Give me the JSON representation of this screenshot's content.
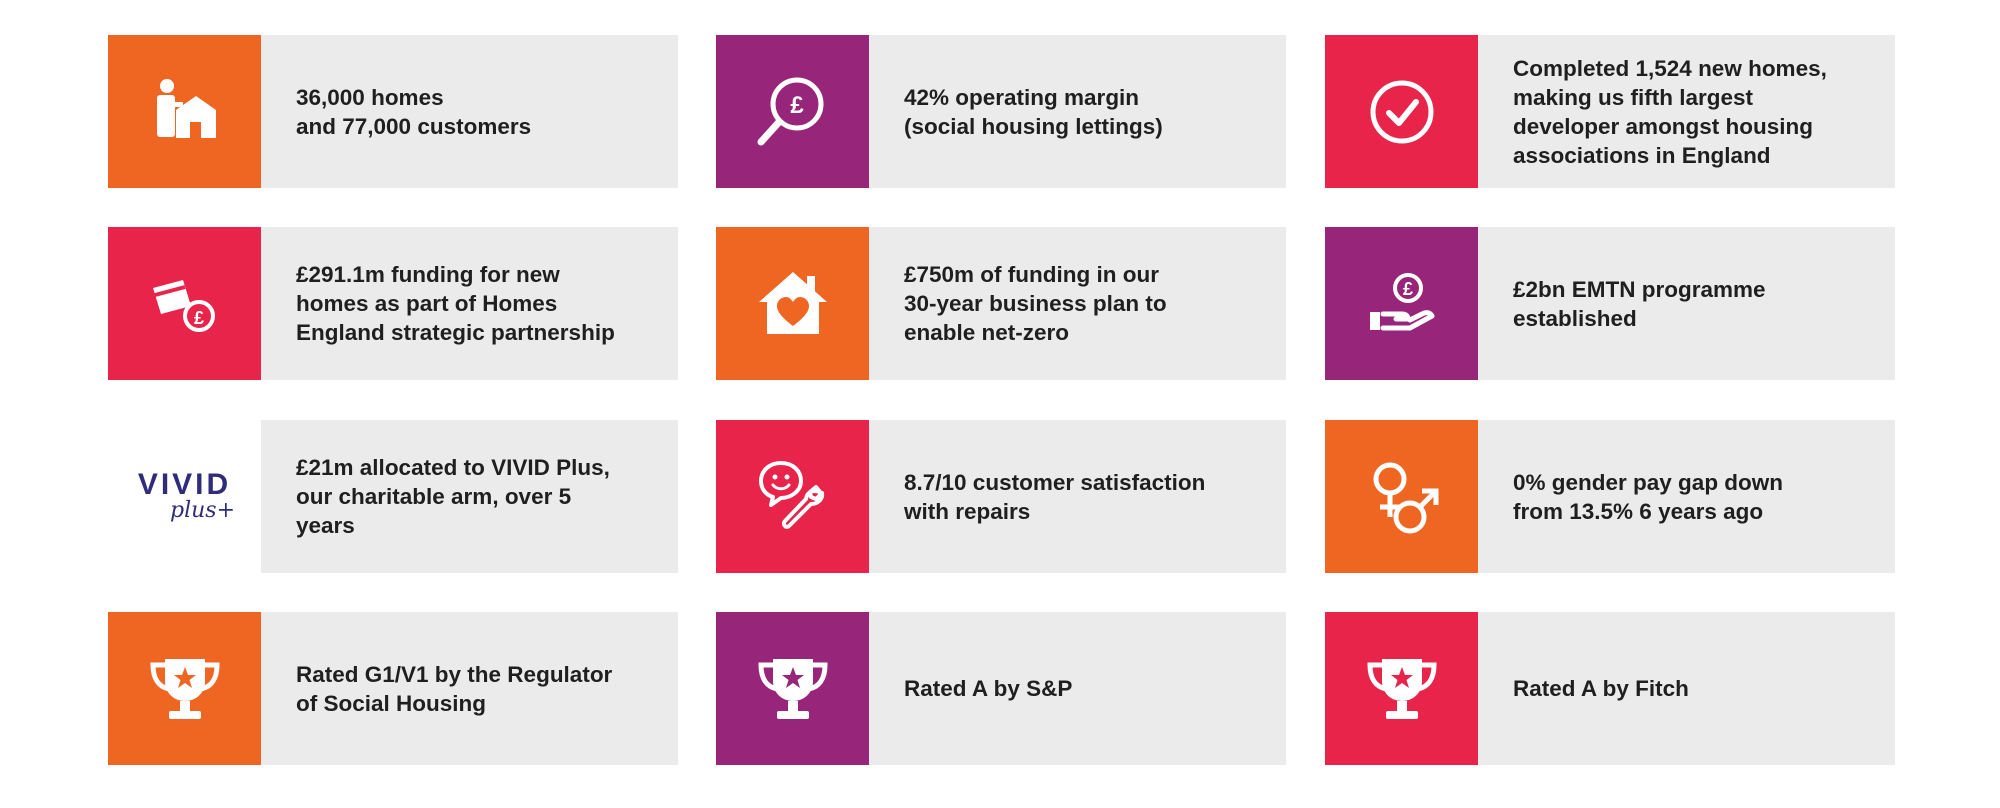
{
  "colors": {
    "orange": "#ef6622",
    "purple": "#97267a",
    "red": "#e8244a",
    "card": "#ebebeb",
    "text": "#1f1f1f",
    "logo_navy": "#2f2d7a"
  },
  "cards": [
    {
      "icon": "person-home-icon",
      "text": "36,000 homes\nand 77,000 customers"
    },
    {
      "icon": "pound-magnifier-icon",
      "text": "42% operating margin\n(social housing lettings)"
    },
    {
      "icon": "checkmark-circle-icon",
      "text": "Completed 1,524 new homes,\nmaking us fifth largest\ndeveloper amongst housing\nassociations in England"
    },
    {
      "icon": "card-pound-icon",
      "text": "£291.1m funding for new\nhomes as part of Homes\nEngland strategic partnership"
    },
    {
      "icon": "house-heart-icon",
      "text": "£750m of funding in our\n30-year business plan to\nenable net-zero"
    },
    {
      "icon": "hand-pound-icon",
      "text": "£2bn EMTN programme\nestablished"
    },
    {
      "icon": "vivid-plus-logo",
      "logo_main": "VIVID",
      "logo_sub": "plus+",
      "text": "£21m allocated to VIVID Plus,\nour charitable arm, over 5\nyears"
    },
    {
      "icon": "smiley-wrench-icon",
      "text": "8.7/10 customer satisfaction\nwith repairs"
    },
    {
      "icon": "gender-symbols-icon",
      "text": "0% gender pay gap down\nfrom 13.5% 6 years ago"
    },
    {
      "icon": "trophy-star-icon",
      "text": "Rated G1/V1 by the Regulator\nof Social Housing"
    },
    {
      "icon": "trophy-star-icon",
      "text": "Rated A by S&P"
    },
    {
      "icon": "trophy-star-icon",
      "text": "Rated A by Fitch"
    }
  ]
}
